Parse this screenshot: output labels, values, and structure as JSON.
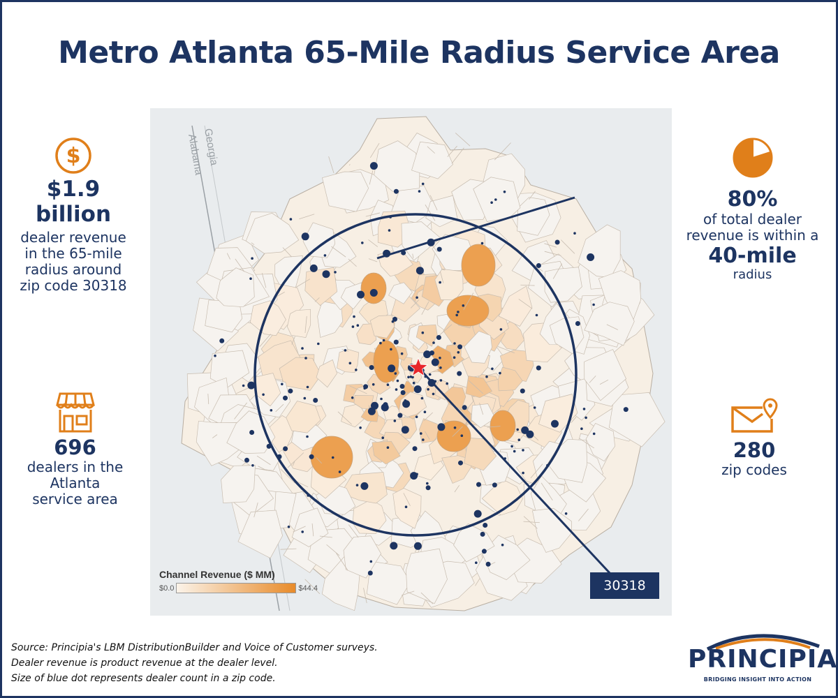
{
  "title": "Metro Atlanta 65-Mile Radius Service Area",
  "stats": {
    "revenue": {
      "value": "$1.9 billion",
      "line1": "dealer revenue",
      "line2": "in the 65-mile",
      "line3": "radius around",
      "line4": "zip code 30318",
      "icon": "dollar-circle-icon"
    },
    "share": {
      "value": "80%",
      "line1": "of total dealer",
      "line2": "revenue is within a",
      "highlight": "40-mile",
      "line3": "radius",
      "icon": "pie-chart-icon",
      "fraction": 0.8
    },
    "dealers": {
      "value": "696",
      "line1": "dealers in the",
      "line2": "Atlanta",
      "line3": "service area",
      "icon": "storefront-icon"
    },
    "zips": {
      "value": "280",
      "line1": "zip codes",
      "icon": "envelope-location-icon"
    }
  },
  "map": {
    "state_labels": [
      "Georgia",
      "Alabama"
    ],
    "center_zip": "30318",
    "radius_miles": 40,
    "service_radius_miles": 65,
    "legend": {
      "title": "Channel Revenue ($ MM)",
      "min": "$0.0",
      "max": "$44.4",
      "low_color": "#fbf3e9",
      "high_color": "#e88b2a"
    },
    "dot_color": "#1d3461",
    "marker_color": "#e8262a"
  },
  "source": {
    "line1": "Source: Principia's LBM DistributionBuilder and Voice of Customer surveys.",
    "line2": "Dealer revenue is product revenue at the dealer level.",
    "line3": "Size of blue dot represents dealer count in a zip code."
  },
  "logo": {
    "name": "PRINCIPIA",
    "tagline": "BRIDGING INSIGHT INTO ACTION"
  },
  "colors": {
    "navy": "#1d3461",
    "orange": "#e07f1a"
  }
}
